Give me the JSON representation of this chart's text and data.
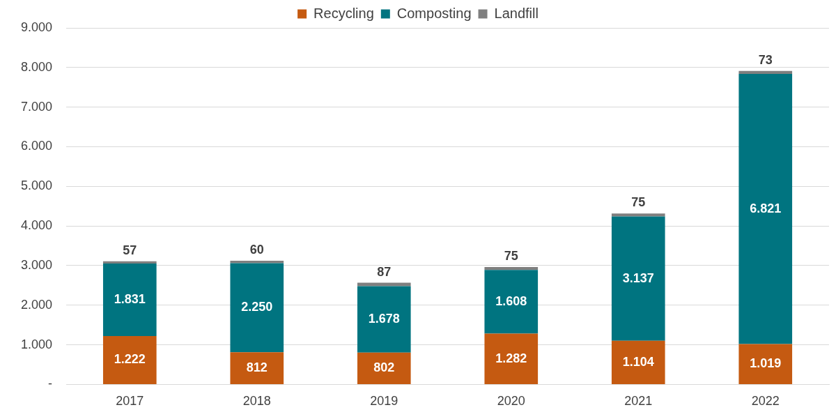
{
  "chart_data": {
    "type": "bar",
    "stacked": true,
    "categories": [
      "2017",
      "2018",
      "2019",
      "2020",
      "2021",
      "2022"
    ],
    "series": [
      {
        "name": "Recycling",
        "color": "#c55a11",
        "values": [
          1222,
          812,
          802,
          1282,
          1104,
          1019
        ],
        "value_labels": [
          "1.222",
          "812",
          "802",
          "1.282",
          "1.104",
          "1.019"
        ]
      },
      {
        "name": "Composting",
        "color": "#007480",
        "values": [
          1831,
          2250,
          1678,
          1608,
          3137,
          6821
        ],
        "value_labels": [
          "1.831",
          "2.250",
          "1.678",
          "1.608",
          "3.137",
          "6.821"
        ]
      },
      {
        "name": "Landfill",
        "color": "#7f7f7f",
        "values": [
          57,
          60,
          87,
          75,
          75,
          73
        ],
        "value_labels": [
          "57",
          "60",
          "87",
          "75",
          "75",
          "73"
        ]
      }
    ],
    "ylim": [
      0,
      9000
    ],
    "yticks": [
      {
        "value": 0,
        "label": "-"
      },
      {
        "value": 1000,
        "label": "1.000"
      },
      {
        "value": 2000,
        "label": "2.000"
      },
      {
        "value": 3000,
        "label": "3.000"
      },
      {
        "value": 4000,
        "label": "4.000"
      },
      {
        "value": 5000,
        "label": "5.000"
      },
      {
        "value": 6000,
        "label": "6.000"
      },
      {
        "value": 7000,
        "label": "7.000"
      },
      {
        "value": 8000,
        "label": "8.000"
      },
      {
        "value": 9000,
        "label": "9.000"
      }
    ],
    "grid": "y",
    "legend": "top"
  }
}
